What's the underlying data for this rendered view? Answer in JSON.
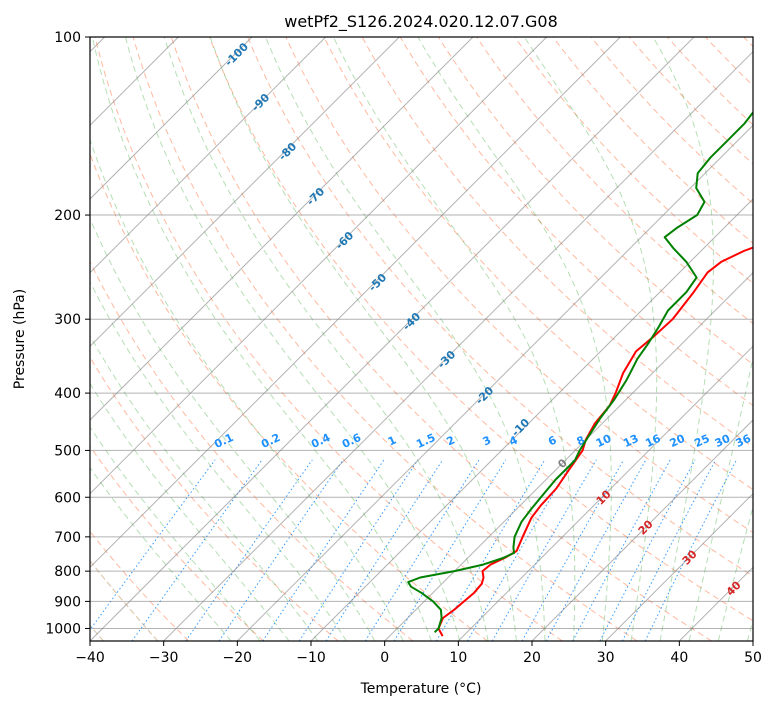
{
  "chart_data": {
    "type": "line",
    "title": "wetPf2_S126.2024.020.12.07.G08",
    "xlabel": "Temperature (°C)",
    "ylabel": "Pressure (hPa)",
    "xlim": [
      -40,
      50
    ],
    "ylim": [
      1050,
      100
    ],
    "y_scale": "log",
    "x_ticks": [
      -40,
      -30,
      -20,
      -10,
      0,
      10,
      20,
      30,
      40,
      50
    ],
    "y_ticks": [
      100,
      200,
      300,
      400,
      500,
      600,
      700,
      800,
      900,
      1000
    ],
    "grid": true,
    "skew": 45,
    "series": [
      {
        "label": "temperature",
        "color": "#ff0000",
        "points": [
          [
            1030,
            7.2
          ],
          [
            1000,
            5.6
          ],
          [
            960,
            4.8
          ],
          [
            930,
            5.2
          ],
          [
            900,
            5.4
          ],
          [
            870,
            5.6
          ],
          [
            840,
            5.4
          ],
          [
            820,
            4.8
          ],
          [
            800,
            3.8
          ],
          [
            780,
            4.0
          ],
          [
            760,
            5.0
          ],
          [
            740,
            5.7
          ],
          [
            700,
            4.6
          ],
          [
            650,
            3.2
          ],
          [
            620,
            2.8
          ],
          [
            580,
            2.6
          ],
          [
            540,
            1.8
          ],
          [
            500,
            1.0
          ],
          [
            480,
            0.0
          ],
          [
            450,
            -1.0
          ],
          [
            420,
            -1.4
          ],
          [
            400,
            -2.3
          ],
          [
            370,
            -4.0
          ],
          [
            340,
            -5.2
          ],
          [
            320,
            -4.8
          ],
          [
            300,
            -4.6
          ],
          [
            270,
            -5.4
          ],
          [
            250,
            -6.2
          ],
          [
            240,
            -5.8
          ],
          [
            230,
            -4.2
          ],
          [
            220,
            -1.6
          ],
          [
            210,
            1.6
          ],
          [
            200,
            3.6
          ],
          [
            180,
            7.0
          ],
          [
            160,
            11.0
          ],
          [
            140,
            14.0
          ],
          [
            130,
            16.0
          ],
          [
            120,
            18.8
          ],
          [
            110,
            20.4
          ],
          [
            100,
            23.6
          ]
        ]
      },
      {
        "label": "dewpoint",
        "color": "#008000",
        "points": [
          [
            1015,
            5.6
          ],
          [
            1000,
            5.6
          ],
          [
            960,
            4.6
          ],
          [
            930,
            3.4
          ],
          [
            900,
            1.2
          ],
          [
            870,
            -1.6
          ],
          [
            850,
            -3.8
          ],
          [
            835,
            -4.8
          ],
          [
            820,
            -3.8
          ],
          [
            800,
            0.0
          ],
          [
            780,
            3.0
          ],
          [
            760,
            4.8
          ],
          [
            745,
            5.6
          ],
          [
            730,
            4.8
          ],
          [
            700,
            3.5
          ],
          [
            660,
            2.4
          ],
          [
            630,
            2.0
          ],
          [
            600,
            1.7
          ],
          [
            560,
            1.3
          ],
          [
            520,
            1.3
          ],
          [
            500,
            0.6
          ],
          [
            470,
            -0.2
          ],
          [
            440,
            -1.0
          ],
          [
            410,
            -1.6
          ],
          [
            380,
            -2.6
          ],
          [
            350,
            -4.0
          ],
          [
            330,
            -4.6
          ],
          [
            310,
            -5.4
          ],
          [
            290,
            -6.4
          ],
          [
            270,
            -6.4
          ],
          [
            255,
            -7.0
          ],
          [
            240,
            -10.5
          ],
          [
            228,
            -14.0
          ],
          [
            218,
            -16.8
          ],
          [
            210,
            -16.4
          ],
          [
            200,
            -15.4
          ],
          [
            190,
            -16.2
          ],
          [
            180,
            -19.2
          ],
          [
            170,
            -21.0
          ],
          [
            160,
            -21.4
          ],
          [
            150,
            -21.4
          ],
          [
            140,
            -21.4
          ],
          [
            130,
            -22.0
          ],
          [
            120,
            -23.0
          ],
          [
            110,
            -25.0
          ],
          [
            100,
            -26.8
          ]
        ]
      }
    ],
    "isentrope_labels": [
      "-100",
      "-90",
      "-80",
      "-70",
      "-60",
      "-50",
      "-40",
      "-30",
      "-20",
      "-10"
    ],
    "mixing_ratio_labels": [
      "0.1",
      "0.2",
      "0.4",
      "0.6",
      "1",
      "1.5",
      "2",
      "3",
      "4",
      "6",
      "8",
      "10",
      "13",
      "16",
      "20",
      "25",
      "30",
      "36"
    ],
    "moist_adiabat_labels": [
      "0",
      "10",
      "20",
      "30",
      "40"
    ]
  }
}
